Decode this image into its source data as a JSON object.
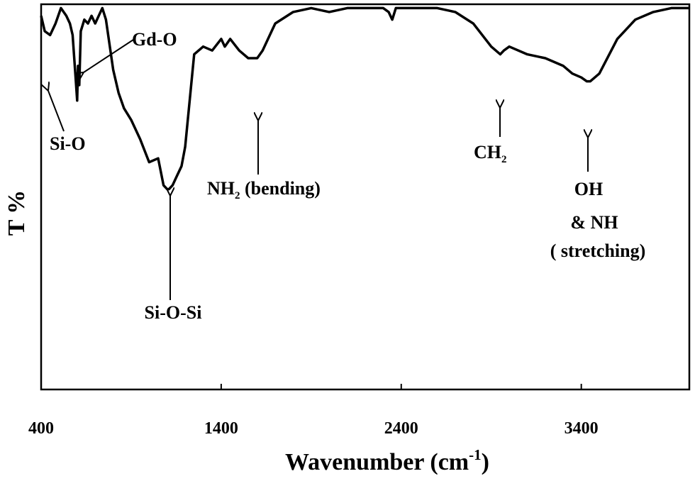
{
  "chart_data": {
    "type": "line",
    "xlabel_main": "Wavenumber (cm",
    "xlabel_sup": "-1",
    "xlabel_end": ")",
    "ylabel": "T %",
    "xlim": [
      400,
      4000
    ],
    "ylim": [
      0,
      100
    ],
    "xticks": [
      400,
      1400,
      2400,
      3400
    ],
    "grid": false,
    "series": [
      {
        "x": [
          400,
          420,
          450,
          480,
          510,
          540,
          560,
          575,
          590,
          600,
          605,
          612,
          620,
          640,
          660,
          680,
          700,
          720,
          740,
          760,
          800,
          830,
          860,
          900,
          950,
          1000,
          1050,
          1080,
          1100,
          1110,
          1130,
          1150,
          1180,
          1200,
          1250,
          1300,
          1350,
          1400,
          1420,
          1450,
          1500,
          1550,
          1600,
          1630,
          1700,
          1800,
          1900,
          2000,
          2100,
          2200,
          2300,
          2330,
          2350,
          2370,
          2400,
          2500,
          2600,
          2700,
          2800,
          2900,
          2950,
          2970,
          3000,
          3100,
          3200,
          3300,
          3350,
          3400,
          3430,
          3450,
          3500,
          3600,
          3700,
          3800,
          3900,
          4000
        ],
        "y": [
          97,
          93,
          92,
          95,
          99,
          97,
          95,
          92,
          82,
          75,
          84,
          79,
          93,
          96,
          95,
          97,
          95,
          97,
          99,
          96,
          83,
          77,
          73,
          70,
          65,
          59,
          60,
          53,
          52,
          52,
          53,
          55,
          58,
          63,
          87,
          89,
          88,
          91,
          89,
          91,
          88,
          86,
          86,
          88,
          95,
          98,
          99,
          98,
          99,
          99,
          99,
          98,
          96,
          99,
          99,
          99,
          99,
          98,
          95,
          89,
          87,
          88,
          89,
          87,
          86,
          84,
          82,
          81,
          80,
          80,
          82,
          91,
          96,
          98,
          99,
          99
        ]
      }
    ],
    "annotations": [
      {
        "label": "Gd-O"
      },
      {
        "label": "Si-O"
      },
      {
        "label": "Si-O-Si"
      },
      {
        "label_main": "NH",
        "label_sub": "2",
        "label_end": " (bending)"
      },
      {
        "label_main": "CH",
        "label_sub": "2"
      },
      {
        "label_lines": [
          "OH",
          "& NH",
          "( stretching)"
        ]
      }
    ]
  }
}
